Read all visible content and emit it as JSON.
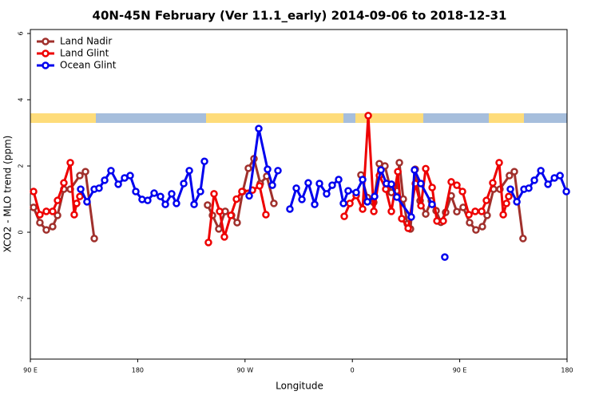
{
  "chart_data": {
    "type": "line",
    "title": "40N-45N February (Ver 11.1_early)   2014-09-06 to 2018-12-31",
    "xlabel": "Longitude",
    "ylabel": "XCO2 - MLO trend (ppm)",
    "xlim": [
      90,
      540
    ],
    "ylim": [
      -3.83,
      6.12
    ],
    "xticks": [
      {
        "value": 90,
        "label": "90 E"
      },
      180,
      {
        "value": 270,
        "label": "90 W"
      },
      {
        "value": 360,
        "label": "0"
      },
      {
        "value": 450,
        "label": "90 E"
      },
      {
        "value": 540,
        "label": "180"
      }
    ],
    "yticks": [
      -2,
      0,
      2,
      4,
      6
    ],
    "legend": "top-left",
    "series": [
      {
        "name": "Land Nadir",
        "color": "#a0302c",
        "x": [
          92.7,
          98.0,
          103.4,
          108.7,
          112.8,
          118.1,
          123.5,
          131.5,
          136.2,
          143.6,
          null,
          238.6,
          242.7,
          248.0,
          253.4,
          258.7,
          263.4,
          268.1,
          272.8,
          277.5,
          282.8,
          288.2,
          294.2,
          null,
          367.2,
          372.6,
          377.9,
          382.6,
          387.3,
          392.7,
          397.3,
          399.4,
          402.7,
          406.1,
          408.7,
          412.7,
          416.8,
          421.5,
          426.2,
          430.2,
          434.2,
          438.2,
          442.9,
          447.6,
          452.9,
          458.3,
          463.6,
          469.0,
          473.0,
          478.4,
          483.7,
          491.7,
          495.8,
          503.1
        ],
        "values": [
          0.75,
          0.29,
          0.07,
          0.17,
          0.51,
          1.3,
          1.3,
          1.71,
          1.83,
          -0.19,
          null,
          0.82,
          0.51,
          0.1,
          0.63,
          0.51,
          0.29,
          1.23,
          1.93,
          2.22,
          1.47,
          1.69,
          0.87,
          null,
          1.73,
          1.05,
          0.9,
          2.07,
          2.0,
          1.2,
          1.25,
          2.1,
          1.0,
          0.25,
          0.1,
          1.9,
          0.95,
          0.55,
          0.95,
          0.65,
          0.3,
          0.6,
          1.1,
          0.62,
          0.75,
          0.29,
          0.07,
          0.17,
          0.51,
          1.3,
          1.3,
          1.71,
          1.83,
          -0.19
        ]
      },
      {
        "name": "Land Glint",
        "color": "#ee0000",
        "x": [
          92.7,
          98.0,
          103.4,
          108.7,
          112.8,
          118.1,
          123.5,
          126.8,
          128.8,
          131.5,
          null,
          239.3,
          244.0,
          248.7,
          252.7,
          258.1,
          262.8,
          267.4,
          276.2,
          282.2,
          287.5,
          null,
          353.2,
          357.9,
          363.2,
          368.6,
          373.3,
          378.0,
          382.7,
          388.0,
          392.7,
          398.1,
          401.4,
          406.8,
          412.8,
          417.5,
          421.5,
          426.9,
          430.9,
          436.2,
          442.9,
          447.6,
          452.3,
          457.7,
          463.0,
          468.4,
          472.4,
          477.7,
          483.1,
          486.5,
          489.2,
          491.1
        ],
        "values": [
          1.23,
          0.53,
          0.63,
          0.63,
          0.96,
          1.49,
          2.1,
          0.53,
          0.87,
          1.08,
          null,
          -0.31,
          1.16,
          0.63,
          -0.14,
          0.51,
          1.0,
          1.23,
          1.27,
          1.4,
          0.53,
          null,
          0.48,
          0.87,
          1.11,
          0.7,
          3.52,
          0.63,
          1.71,
          1.3,
          0.63,
          1.83,
          0.41,
          0.12,
          1.47,
          0.8,
          1.92,
          1.35,
          0.34,
          0.34,
          1.52,
          1.42,
          1.23,
          0.53,
          0.63,
          0.63,
          0.96,
          1.49,
          2.1,
          0.53,
          0.87,
          1.08
        ]
      },
      {
        "name": "Ocean Glint",
        "color": "#0000ee",
        "x": [
          132.2,
          137.5,
          143.6,
          147.6,
          152.3,
          157.6,
          163.7,
          169.0,
          173.7,
          178.4,
          183.7,
          188.4,
          193.8,
          199.1,
          203.2,
          208.5,
          212.5,
          218.6,
          223.3,
          227.3,
          232.6,
          236.0,
          null,
          273.5,
          281.5,
          288.9,
          292.9,
          297.6,
          null,
          307.6,
          313.0,
          317.7,
          323.0,
          328.4,
          332.4,
          338.4,
          343.1,
          348.5,
          352.5,
          356.5,
          363.2,
          368.6,
          372.6,
          378.6,
          384.0,
          388.6,
          392.7,
          397.3,
          409.4,
          412.1,
          417.4,
          426.8,
          null,
          437.5,
          null,
          492.5,
          497.9,
          503.9,
          507.9,
          512.6,
          518.0,
          524.0,
          529.4,
          534.1,
          539.4
        ],
        "values": [
          1.3,
          0.92,
          1.3,
          1.33,
          1.57,
          1.86,
          1.45,
          1.64,
          1.71,
          1.23,
          0.99,
          0.96,
          1.18,
          1.08,
          0.84,
          1.16,
          0.87,
          1.47,
          1.86,
          0.84,
          1.23,
          2.14,
          null,
          1.1,
          3.13,
          1.9,
          1.42,
          1.86,
          null,
          0.7,
          1.33,
          0.99,
          1.49,
          0.84,
          1.47,
          1.16,
          1.42,
          1.59,
          0.87,
          1.25,
          1.2,
          1.59,
          0.92,
          1.08,
          1.88,
          1.47,
          1.45,
          1.06,
          0.46,
          1.88,
          1.47,
          0.84,
          null,
          -0.75,
          null,
          1.3,
          0.92,
          1.3,
          1.33,
          1.57,
          1.86,
          1.45,
          1.64,
          1.71,
          1.23
        ]
      }
    ]
  }
}
